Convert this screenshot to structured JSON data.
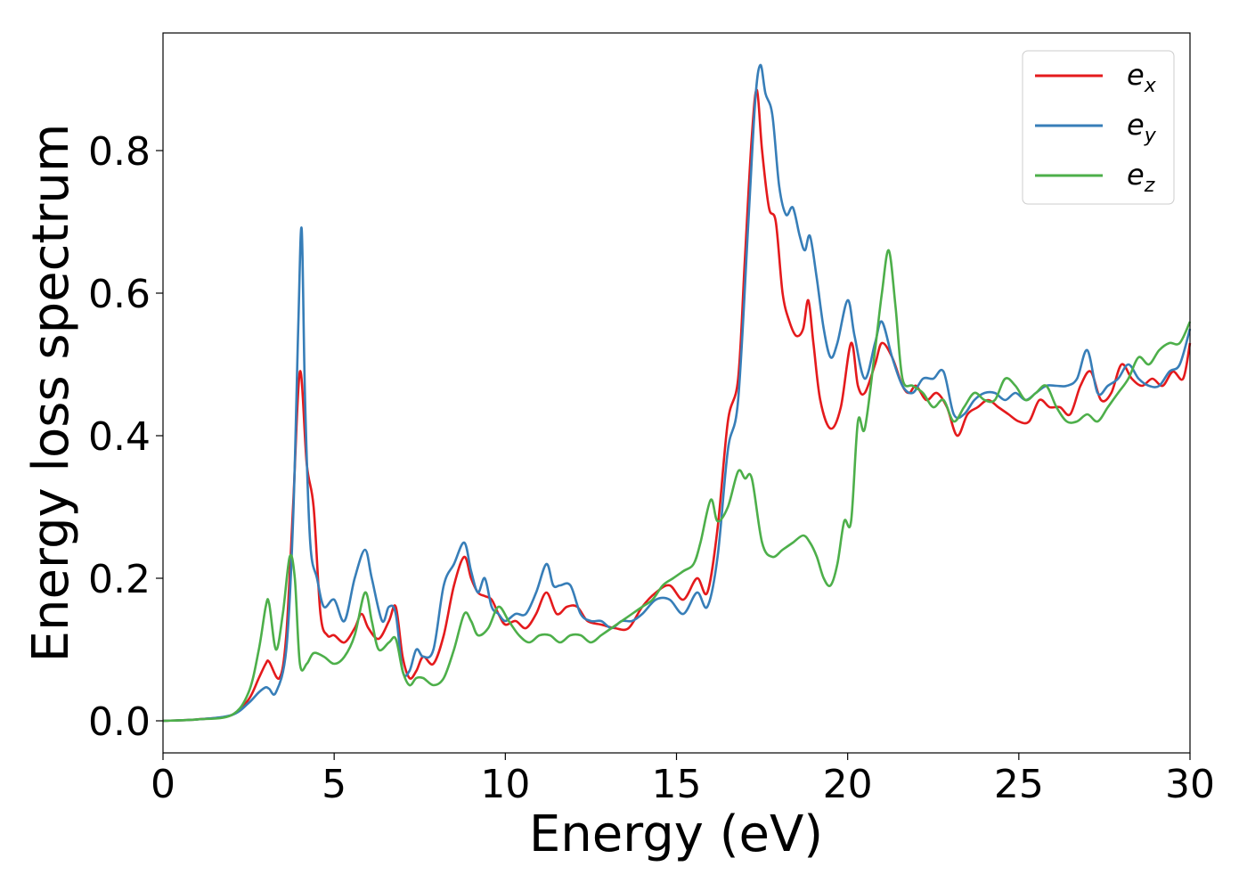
{
  "chart_data": {
    "type": "line",
    "xlabel": "Energy (eV)",
    "ylabel": "Energy loss spectrum",
    "xlim": [
      0,
      30
    ],
    "ylim": [
      -0.045,
      0.965
    ],
    "xticks": [
      0,
      5,
      10,
      15,
      20,
      25,
      30
    ],
    "xtick_labels": [
      "0",
      "5",
      "10",
      "15",
      "20",
      "25",
      "30"
    ],
    "yticks": [
      0.0,
      0.2,
      0.4,
      0.6,
      0.8
    ],
    "ytick_labels": [
      "0.0",
      "0.2",
      "0.4",
      "0.6",
      "0.8"
    ],
    "grid": false,
    "legend_position": "top-right",
    "series": [
      {
        "name": "e",
        "subscript": "x",
        "color": "#e41a1c",
        "x": [
          0,
          1,
          2,
          2.5,
          2.8,
          3.0,
          3.1,
          3.4,
          3.6,
          3.8,
          4.0,
          4.2,
          4.4,
          4.6,
          4.8,
          5.0,
          5.3,
          5.6,
          5.8,
          6.0,
          6.3,
          6.6,
          6.8,
          7.0,
          7.2,
          7.4,
          7.6,
          7.9,
          8.2,
          8.5,
          8.8,
          9.0,
          9.2,
          9.4,
          9.6,
          9.8,
          10.0,
          10.3,
          10.6,
          10.9,
          11.2,
          11.5,
          11.8,
          12.1,
          12.4,
          12.8,
          13.2,
          13.6,
          14.0,
          14.4,
          14.8,
          15.2,
          15.6,
          15.9,
          16.2,
          16.5,
          16.8,
          17.0,
          17.2,
          17.35,
          17.5,
          17.7,
          17.9,
          18.1,
          18.3,
          18.5,
          18.7,
          18.85,
          19.0,
          19.2,
          19.5,
          19.8,
          20.1,
          20.3,
          20.5,
          20.8,
          21.0,
          21.3,
          21.6,
          21.8,
          22.0,
          22.3,
          22.6,
          22.9,
          23.2,
          23.5,
          23.8,
          24.1,
          24.4,
          24.7,
          25.0,
          25.3,
          25.6,
          25.9,
          26.2,
          26.5,
          26.8,
          27.1,
          27.4,
          27.7,
          28.0,
          28.3,
          28.6,
          28.9,
          29.2,
          29.5,
          29.8,
          30.0
        ],
        "values": [
          0,
          0.002,
          0.008,
          0.03,
          0.06,
          0.08,
          0.083,
          0.06,
          0.12,
          0.3,
          0.49,
          0.36,
          0.3,
          0.15,
          0.12,
          0.12,
          0.11,
          0.13,
          0.15,
          0.13,
          0.115,
          0.14,
          0.16,
          0.09,
          0.06,
          0.07,
          0.09,
          0.08,
          0.12,
          0.19,
          0.23,
          0.2,
          0.18,
          0.175,
          0.17,
          0.15,
          0.135,
          0.14,
          0.13,
          0.15,
          0.18,
          0.15,
          0.16,
          0.16,
          0.14,
          0.135,
          0.13,
          0.13,
          0.16,
          0.18,
          0.19,
          0.17,
          0.2,
          0.18,
          0.27,
          0.42,
          0.48,
          0.65,
          0.82,
          0.885,
          0.8,
          0.72,
          0.7,
          0.6,
          0.56,
          0.54,
          0.55,
          0.59,
          0.53,
          0.45,
          0.41,
          0.44,
          0.53,
          0.47,
          0.46,
          0.5,
          0.53,
          0.51,
          0.47,
          0.46,
          0.47,
          0.45,
          0.46,
          0.44,
          0.4,
          0.43,
          0.44,
          0.45,
          0.44,
          0.43,
          0.42,
          0.42,
          0.45,
          0.44,
          0.44,
          0.43,
          0.47,
          0.49,
          0.45,
          0.46,
          0.5,
          0.48,
          0.47,
          0.48,
          0.47,
          0.49,
          0.48,
          0.53
        ]
      },
      {
        "name": "e",
        "subscript": "y",
        "color": "#377eb8",
        "x": [
          0,
          1,
          2,
          2.5,
          2.8,
          3.0,
          3.1,
          3.3,
          3.6,
          3.8,
          3.95,
          4.05,
          4.15,
          4.3,
          4.5,
          4.7,
          5.0,
          5.3,
          5.6,
          5.9,
          6.1,
          6.4,
          6.6,
          6.8,
          7.0,
          7.2,
          7.4,
          7.6,
          7.9,
          8.2,
          8.5,
          8.8,
          9.0,
          9.2,
          9.4,
          9.6,
          9.8,
          10.0,
          10.3,
          10.6,
          10.9,
          11.2,
          11.4,
          11.6,
          11.9,
          12.2,
          12.5,
          12.8,
          13.1,
          13.4,
          13.7,
          14.0,
          14.4,
          14.8,
          15.2,
          15.6,
          15.9,
          16.2,
          16.5,
          16.8,
          17.1,
          17.3,
          17.45,
          17.6,
          17.8,
          18.0,
          18.2,
          18.4,
          18.6,
          18.75,
          18.9,
          19.1,
          19.3,
          19.5,
          19.7,
          20.0,
          20.2,
          20.5,
          20.8,
          21.0,
          21.3,
          21.6,
          21.9,
          22.2,
          22.5,
          22.8,
          23.1,
          23.4,
          23.7,
          24.0,
          24.3,
          24.6,
          24.9,
          25.2,
          25.5,
          25.8,
          26.1,
          26.4,
          26.7,
          27.0,
          27.3,
          27.6,
          27.9,
          28.2,
          28.5,
          28.8,
          29.1,
          29.4,
          29.7,
          30.0
        ],
        "values": [
          0,
          0.002,
          0.008,
          0.025,
          0.04,
          0.047,
          0.045,
          0.04,
          0.1,
          0.28,
          0.55,
          0.69,
          0.45,
          0.25,
          0.2,
          0.16,
          0.17,
          0.14,
          0.2,
          0.24,
          0.2,
          0.14,
          0.16,
          0.15,
          0.07,
          0.07,
          0.1,
          0.09,
          0.1,
          0.19,
          0.22,
          0.25,
          0.21,
          0.18,
          0.2,
          0.16,
          0.15,
          0.14,
          0.15,
          0.15,
          0.18,
          0.22,
          0.19,
          0.19,
          0.19,
          0.15,
          0.14,
          0.14,
          0.13,
          0.14,
          0.14,
          0.15,
          0.17,
          0.17,
          0.15,
          0.18,
          0.16,
          0.23,
          0.38,
          0.45,
          0.7,
          0.87,
          0.92,
          0.88,
          0.85,
          0.75,
          0.71,
          0.72,
          0.68,
          0.66,
          0.68,
          0.62,
          0.55,
          0.51,
          0.53,
          0.59,
          0.54,
          0.48,
          0.53,
          0.56,
          0.51,
          0.47,
          0.46,
          0.48,
          0.48,
          0.49,
          0.43,
          0.43,
          0.45,
          0.46,
          0.46,
          0.45,
          0.46,
          0.45,
          0.46,
          0.47,
          0.47,
          0.47,
          0.48,
          0.52,
          0.46,
          0.47,
          0.48,
          0.5,
          0.48,
          0.47,
          0.47,
          0.49,
          0.5,
          0.55
        ]
      },
      {
        "name": "e",
        "subscript": "z",
        "color": "#4daf4a",
        "x": [
          0,
          1,
          2,
          2.5,
          2.8,
          3.0,
          3.1,
          3.3,
          3.5,
          3.7,
          3.85,
          4.0,
          4.2,
          4.4,
          4.7,
          5.0,
          5.3,
          5.6,
          5.9,
          6.1,
          6.3,
          6.6,
          6.8,
          7.0,
          7.2,
          7.4,
          7.6,
          7.9,
          8.2,
          8.5,
          8.8,
          9.0,
          9.2,
          9.5,
          9.8,
          10.1,
          10.4,
          10.7,
          11.0,
          11.3,
          11.6,
          11.9,
          12.2,
          12.5,
          12.8,
          13.1,
          13.4,
          13.7,
          14.0,
          14.3,
          14.6,
          14.9,
          15.2,
          15.5,
          15.7,
          16.0,
          16.2,
          16.5,
          16.8,
          17.0,
          17.2,
          17.5,
          17.8,
          18.1,
          18.4,
          18.7,
          18.9,
          19.1,
          19.3,
          19.5,
          19.7,
          19.9,
          20.1,
          20.3,
          20.5,
          20.8,
          21.0,
          21.2,
          21.4,
          21.6,
          21.9,
          22.2,
          22.5,
          22.8,
          23.1,
          23.4,
          23.7,
          24.0,
          24.3,
          24.6,
          24.9,
          25.2,
          25.5,
          25.8,
          26.1,
          26.4,
          26.7,
          27.0,
          27.3,
          27.6,
          27.9,
          28.2,
          28.5,
          28.8,
          29.1,
          29.4,
          29.7,
          30.0
        ],
        "values": [
          0,
          0.002,
          0.008,
          0.04,
          0.1,
          0.16,
          0.165,
          0.1,
          0.15,
          0.23,
          0.2,
          0.08,
          0.08,
          0.095,
          0.09,
          0.08,
          0.09,
          0.12,
          0.18,
          0.14,
          0.1,
          0.11,
          0.115,
          0.07,
          0.05,
          0.06,
          0.06,
          0.05,
          0.06,
          0.1,
          0.15,
          0.14,
          0.12,
          0.13,
          0.16,
          0.14,
          0.12,
          0.11,
          0.12,
          0.12,
          0.11,
          0.12,
          0.12,
          0.11,
          0.12,
          0.13,
          0.14,
          0.15,
          0.16,
          0.17,
          0.19,
          0.2,
          0.21,
          0.22,
          0.25,
          0.31,
          0.28,
          0.3,
          0.35,
          0.34,
          0.34,
          0.25,
          0.23,
          0.24,
          0.25,
          0.26,
          0.25,
          0.23,
          0.2,
          0.19,
          0.22,
          0.28,
          0.28,
          0.42,
          0.41,
          0.52,
          0.6,
          0.66,
          0.58,
          0.48,
          0.47,
          0.46,
          0.44,
          0.45,
          0.42,
          0.44,
          0.46,
          0.45,
          0.45,
          0.48,
          0.47,
          0.45,
          0.46,
          0.47,
          0.44,
          0.42,
          0.42,
          0.43,
          0.42,
          0.44,
          0.46,
          0.48,
          0.51,
          0.5,
          0.52,
          0.53,
          0.53,
          0.56
        ]
      }
    ]
  }
}
